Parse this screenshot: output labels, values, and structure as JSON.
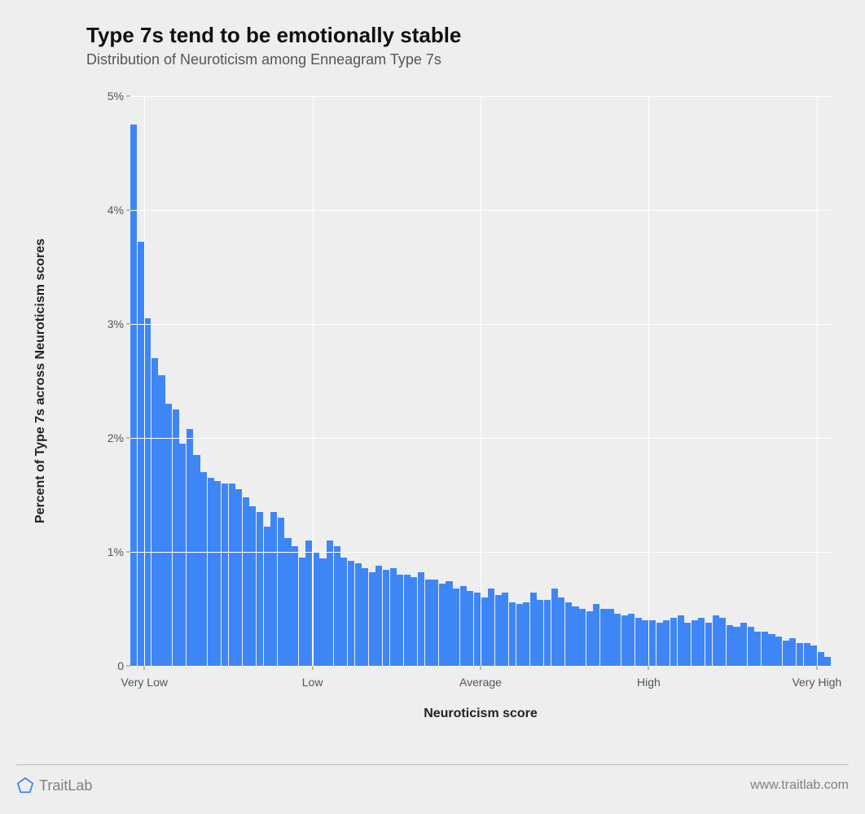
{
  "chart": {
    "type": "histogram",
    "title": "Type 7s tend to be emotionally stable",
    "subtitle": "Distribution of Neuroticism among Enneagram Type 7s",
    "title_fontsize": 26,
    "subtitle_fontsize": 18,
    "title_color": "#111111",
    "subtitle_color": "#555555",
    "background_color": "#eeeeee",
    "grid_color": "#ffffff",
    "bar_color": "#3e86f5",
    "y_axis": {
      "label": "Percent of Type 7s across Neuroticism scores",
      "label_fontsize": 16,
      "min": 0,
      "max": 5,
      "ticks": [
        {
          "value": 0,
          "label": "0"
        },
        {
          "value": 1,
          "label": "1%"
        },
        {
          "value": 2,
          "label": "2%"
        },
        {
          "value": 3,
          "label": "3%"
        },
        {
          "value": 4,
          "label": "4%"
        },
        {
          "value": 5,
          "label": "5%"
        }
      ]
    },
    "x_axis": {
      "label": "Neuroticism score",
      "label_fontsize": 16,
      "ticks": [
        {
          "position": 0.02,
          "label": "Very Low"
        },
        {
          "position": 0.26,
          "label": "Low"
        },
        {
          "position": 0.5,
          "label": "Average"
        },
        {
          "position": 0.74,
          "label": "High"
        },
        {
          "position": 0.98,
          "label": "Very High"
        }
      ]
    },
    "values": [
      4.75,
      3.72,
      3.05,
      2.7,
      2.55,
      2.3,
      2.25,
      1.95,
      2.08,
      1.85,
      1.7,
      1.65,
      1.62,
      1.6,
      1.6,
      1.55,
      1.48,
      1.4,
      1.35,
      1.22,
      1.35,
      1.3,
      1.12,
      1.05,
      0.95,
      1.1,
      1.0,
      0.94,
      1.1,
      1.05,
      0.95,
      0.92,
      0.9,
      0.86,
      0.82,
      0.88,
      0.84,
      0.86,
      0.8,
      0.8,
      0.78,
      0.82,
      0.76,
      0.76,
      0.72,
      0.74,
      0.68,
      0.7,
      0.66,
      0.64,
      0.6,
      0.68,
      0.62,
      0.64,
      0.56,
      0.54,
      0.56,
      0.64,
      0.58,
      0.58,
      0.68,
      0.6,
      0.56,
      0.52,
      0.5,
      0.48,
      0.54,
      0.5,
      0.5,
      0.46,
      0.44,
      0.46,
      0.42,
      0.4,
      0.4,
      0.38,
      0.4,
      0.42,
      0.44,
      0.38,
      0.4,
      0.42,
      0.38,
      0.44,
      0.42,
      0.36,
      0.34,
      0.38,
      0.34,
      0.3,
      0.3,
      0.28,
      0.26,
      0.22,
      0.24,
      0.2,
      0.2,
      0.18,
      0.12,
      0.08
    ]
  },
  "footer": {
    "brand": "TraitLab",
    "brand_color": "#808080",
    "url": "www.traitlab.com",
    "icon_stroke": "#3e86f5"
  }
}
